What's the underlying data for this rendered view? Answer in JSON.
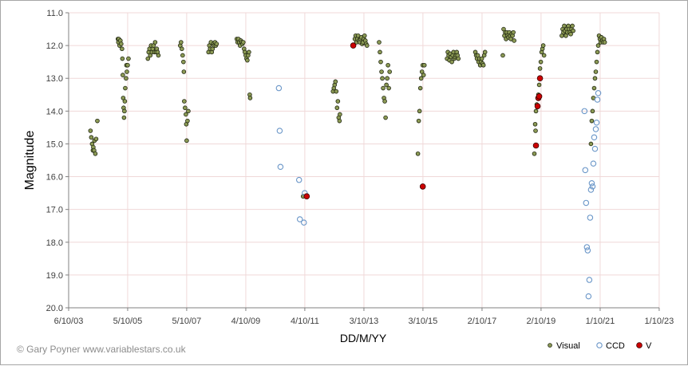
{
  "credit": "© Gary Poyner  www.variablestars.co.uk",
  "chart_data": {
    "type": "scatter",
    "title": "",
    "xlabel": "DD/M/YY",
    "ylabel": "Magnitude",
    "x_range_days": [
      0,
      7305
    ],
    "x_origin_label": "6/10/03",
    "x_ticks": [
      {
        "day": 0,
        "label": "6/10/03"
      },
      {
        "day": 730,
        "label": "5/10/05"
      },
      {
        "day": 1460,
        "label": "5/10/07"
      },
      {
        "day": 2191,
        "label": "4/10/09"
      },
      {
        "day": 2921,
        "label": "4/10/11"
      },
      {
        "day": 3652,
        "label": "3/10/13"
      },
      {
        "day": 4382,
        "label": "3/10/15"
      },
      {
        "day": 5113,
        "label": "2/10/17"
      },
      {
        "day": 5843,
        "label": "2/10/19"
      },
      {
        "day": 6574,
        "label": "1/10/21"
      },
      {
        "day": 7304,
        "label": "1/10/23"
      }
    ],
    "y_range": [
      11.0,
      20.0
    ],
    "y_inverted": true,
    "y_ticks": [
      "11.0",
      "12.0",
      "13.0",
      "14.0",
      "15.0",
      "16.0",
      "17.0",
      "18.0",
      "19.0",
      "20.0"
    ],
    "grid": true,
    "legend_position": "bottom-right",
    "series": [
      {
        "name": "Visual",
        "marker": "filled-circle",
        "color": "#8c9a55",
        "points": [
          [
            270,
            14.6
          ],
          [
            280,
            14.8
          ],
          [
            290,
            15.0
          ],
          [
            300,
            15.2
          ],
          [
            305,
            15.1
          ],
          [
            315,
            15.2
          ],
          [
            320,
            14.9
          ],
          [
            330,
            15.3
          ],
          [
            340,
            14.85
          ],
          [
            355,
            14.3
          ],
          [
            610,
            11.8
          ],
          [
            615,
            11.9
          ],
          [
            620,
            11.8
          ],
          [
            630,
            12.0
          ],
          [
            640,
            11.85
          ],
          [
            650,
            11.95
          ],
          [
            660,
            12.1
          ],
          [
            665,
            12.4
          ],
          [
            670,
            12.9
          ],
          [
            675,
            13.6
          ],
          [
            680,
            13.9
          ],
          [
            685,
            14.2
          ],
          [
            690,
            14.0
          ],
          [
            695,
            13.7
          ],
          [
            700,
            13.3
          ],
          [
            710,
            13.0
          ],
          [
            715,
            12.6
          ],
          [
            720,
            12.8
          ],
          [
            730,
            12.6
          ],
          [
            740,
            12.4
          ],
          [
            980,
            12.4
          ],
          [
            990,
            12.2
          ],
          [
            1000,
            12.1
          ],
          [
            1010,
            12.3
          ],
          [
            1020,
            12.0
          ],
          [
            1030,
            12.2
          ],
          [
            1040,
            12.1
          ],
          [
            1050,
            12.0
          ],
          [
            1060,
            12.2
          ],
          [
            1070,
            11.9
          ],
          [
            1080,
            12.2
          ],
          [
            1090,
            12.1
          ],
          [
            1100,
            12.2
          ],
          [
            1110,
            12.3
          ],
          [
            1380,
            12.0
          ],
          [
            1390,
            11.9
          ],
          [
            1400,
            12.1
          ],
          [
            1410,
            12.3
          ],
          [
            1420,
            12.5
          ],
          [
            1425,
            12.8
          ],
          [
            1430,
            13.7
          ],
          [
            1440,
            13.9
          ],
          [
            1450,
            14.1
          ],
          [
            1455,
            14.4
          ],
          [
            1460,
            14.9
          ],
          [
            1470,
            14.3
          ],
          [
            1480,
            14.0
          ],
          [
            1730,
            12.2
          ],
          [
            1740,
            12.0
          ],
          [
            1750,
            12.1
          ],
          [
            1760,
            11.9
          ],
          [
            1770,
            12.2
          ],
          [
            1780,
            12.1
          ],
          [
            1790,
            11.95
          ],
          [
            1800,
            12.0
          ],
          [
            1810,
            11.9
          ],
          [
            1820,
            12.0
          ],
          [
            1830,
            11.95
          ],
          [
            2080,
            11.8
          ],
          [
            2090,
            11.9
          ],
          [
            2100,
            11.8
          ],
          [
            2110,
            11.9
          ],
          [
            2120,
            12.0
          ],
          [
            2130,
            11.85
          ],
          [
            2140,
            11.9
          ],
          [
            2150,
            11.95
          ],
          [
            2160,
            11.9
          ],
          [
            2170,
            12.1
          ],
          [
            2180,
            12.2
          ],
          [
            2190,
            12.3
          ],
          [
            2200,
            12.4
          ],
          [
            2210,
            12.45
          ],
          [
            2220,
            12.3
          ],
          [
            2230,
            12.2
          ],
          [
            2240,
            13.5
          ],
          [
            2245,
            13.6
          ],
          [
            2900,
            16.6
          ],
          [
            3270,
            13.4
          ],
          [
            3280,
            13.3
          ],
          [
            3290,
            13.2
          ],
          [
            3300,
            13.1
          ],
          [
            3310,
            13.4
          ],
          [
            3320,
            13.9
          ],
          [
            3330,
            13.7
          ],
          [
            3340,
            14.2
          ],
          [
            3350,
            14.3
          ],
          [
            3355,
            14.1
          ],
          [
            3540,
            11.8
          ],
          [
            3550,
            11.7
          ],
          [
            3560,
            11.9
          ],
          [
            3570,
            11.8
          ],
          [
            3580,
            11.7
          ],
          [
            3590,
            11.85
          ],
          [
            3600,
            11.9
          ],
          [
            3610,
            11.8
          ],
          [
            3620,
            11.75
          ],
          [
            3630,
            11.95
          ],
          [
            3640,
            11.9
          ],
          [
            3650,
            11.8
          ],
          [
            3660,
            11.7
          ],
          [
            3670,
            11.85
          ],
          [
            3680,
            11.95
          ],
          [
            3690,
            12.0
          ],
          [
            3840,
            11.9
          ],
          [
            3850,
            12.2
          ],
          [
            3860,
            12.5
          ],
          [
            3870,
            12.8
          ],
          [
            3880,
            13.0
          ],
          [
            3890,
            13.3
          ],
          [
            3900,
            13.6
          ],
          [
            3910,
            13.7
          ],
          [
            3920,
            14.2
          ],
          [
            3930,
            13.2
          ],
          [
            3940,
            13.0
          ],
          [
            3950,
            12.6
          ],
          [
            3960,
            13.3
          ],
          [
            3970,
            12.8
          ],
          [
            4320,
            15.3
          ],
          [
            4330,
            14.3
          ],
          [
            4340,
            14.0
          ],
          [
            4350,
            13.3
          ],
          [
            4360,
            13.0
          ],
          [
            4370,
            12.8
          ],
          [
            4380,
            12.6
          ],
          [
            4390,
            12.9
          ],
          [
            4400,
            12.6
          ],
          [
            4680,
            12.4
          ],
          [
            4690,
            12.2
          ],
          [
            4700,
            12.3
          ],
          [
            4710,
            12.45
          ],
          [
            4720,
            12.25
          ],
          [
            4730,
            12.35
          ],
          [
            4740,
            12.5
          ],
          [
            4750,
            12.3
          ],
          [
            4760,
            12.2
          ],
          [
            4770,
            12.4
          ],
          [
            4780,
            12.35
          ],
          [
            4790,
            12.3
          ],
          [
            4800,
            12.2
          ],
          [
            4810,
            12.3
          ],
          [
            4820,
            12.4
          ],
          [
            5030,
            12.2
          ],
          [
            5040,
            12.3
          ],
          [
            5050,
            12.4
          ],
          [
            5060,
            12.3
          ],
          [
            5070,
            12.5
          ],
          [
            5080,
            12.4
          ],
          [
            5090,
            12.6
          ],
          [
            5100,
            12.5
          ],
          [
            5110,
            12.4
          ],
          [
            5120,
            12.55
          ],
          [
            5130,
            12.6
          ],
          [
            5140,
            12.3
          ],
          [
            5150,
            12.2
          ],
          [
            5370,
            12.3
          ],
          [
            5380,
            11.5
          ],
          [
            5390,
            11.7
          ],
          [
            5400,
            11.6
          ],
          [
            5410,
            11.8
          ],
          [
            5420,
            11.6
          ],
          [
            5430,
            11.7
          ],
          [
            5440,
            11.75
          ],
          [
            5450,
            11.6
          ],
          [
            5460,
            11.7
          ],
          [
            5470,
            11.8
          ],
          [
            5480,
            11.65
          ],
          [
            5490,
            11.7
          ],
          [
            5500,
            11.6
          ],
          [
            5510,
            11.85
          ],
          [
            5760,
            15.3
          ],
          [
            5770,
            14.4
          ],
          [
            5775,
            14.6
          ],
          [
            5780,
            14.0
          ],
          [
            5790,
            13.8
          ],
          [
            5800,
            13.6
          ],
          [
            5810,
            13.5
          ],
          [
            5820,
            13.2
          ],
          [
            5830,
            12.7
          ],
          [
            5840,
            12.5
          ],
          [
            5850,
            12.2
          ],
          [
            5860,
            12.1
          ],
          [
            5870,
            12.0
          ],
          [
            5880,
            12.3
          ],
          [
            6100,
            11.7
          ],
          [
            6110,
            11.5
          ],
          [
            6120,
            11.6
          ],
          [
            6130,
            11.4
          ],
          [
            6140,
            11.55
          ],
          [
            6150,
            11.7
          ],
          [
            6160,
            11.5
          ],
          [
            6170,
            11.6
          ],
          [
            6180,
            11.4
          ],
          [
            6190,
            11.5
          ],
          [
            6200,
            11.6
          ],
          [
            6210,
            11.65
          ],
          [
            6220,
            11.5
          ],
          [
            6230,
            11.4
          ],
          [
            6240,
            11.55
          ],
          [
            6460,
            15.0
          ],
          [
            6470,
            14.3
          ],
          [
            6480,
            14.0
          ],
          [
            6490,
            13.6
          ],
          [
            6500,
            13.3
          ],
          [
            6510,
            13.0
          ],
          [
            6520,
            12.8
          ],
          [
            6530,
            12.5
          ],
          [
            6540,
            12.2
          ],
          [
            6550,
            12.0
          ],
          [
            6560,
            11.7
          ],
          [
            6570,
            11.8
          ],
          [
            6580,
            11.9
          ],
          [
            6590,
            11.75
          ],
          [
            6600,
            11.85
          ],
          [
            6610,
            11.9
          ],
          [
            6620,
            11.8
          ],
          [
            6630,
            11.9
          ]
        ]
      },
      {
        "name": "CCD",
        "marker": "open-circle",
        "color": "#6a96c8",
        "points": [
          [
            2600,
            13.3
          ],
          [
            2610,
            14.6
          ],
          [
            2620,
            15.7
          ],
          [
            2850,
            16.1
          ],
          [
            2860,
            17.3
          ],
          [
            2910,
            17.4
          ],
          [
            2920,
            16.5
          ],
          [
            6380,
            14.0
          ],
          [
            6390,
            15.8
          ],
          [
            6400,
            16.8
          ],
          [
            6410,
            18.15
          ],
          [
            6420,
            18.25
          ],
          [
            6430,
            19.65
          ],
          [
            6440,
            19.15
          ],
          [
            6450,
            17.25
          ],
          [
            6460,
            16.4
          ],
          [
            6470,
            16.2
          ],
          [
            6480,
            16.3
          ],
          [
            6490,
            15.6
          ],
          [
            6500,
            14.8
          ],
          [
            6510,
            15.15
          ],
          [
            6520,
            14.55
          ],
          [
            6530,
            14.35
          ],
          [
            6540,
            13.65
          ],
          [
            6550,
            13.45
          ]
        ]
      },
      {
        "name": "V",
        "marker": "filled-circle",
        "color": "#cc0000",
        "points": [
          [
            2945,
            16.6
          ],
          [
            3520,
            12.0
          ],
          [
            4380,
            16.3
          ],
          [
            5780,
            15.05
          ],
          [
            5800,
            13.85
          ],
          [
            5810,
            13.6
          ],
          [
            5820,
            13.55
          ],
          [
            5830,
            13.0
          ]
        ]
      }
    ]
  }
}
